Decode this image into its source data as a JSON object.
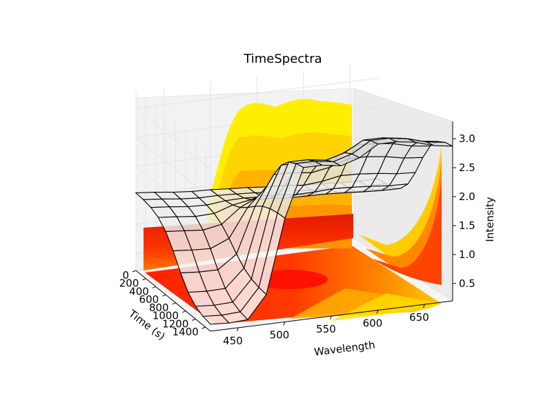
{
  "chart_data": {
    "type": "surface3d",
    "title": "TimeSpectra",
    "xlabel": "Wavelength",
    "ylabel": "Time (s)",
    "zlabel": "Intensity",
    "x_ticks": [
      450,
      500,
      550,
      600,
      650
    ],
    "y_ticks": [
      0,
      200,
      400,
      600,
      800,
      1000,
      1200,
      1400
    ],
    "z_ticks": [
      0.5,
      1.0,
      1.5,
      2.0,
      2.5,
      3.0
    ],
    "x_tick_labels": [
      "450",
      "500",
      "550",
      "600",
      "650"
    ],
    "y_tick_labels": [
      "0",
      "200",
      "400",
      "600",
      "800",
      "1000",
      "1200",
      "1400"
    ],
    "z_tick_labels": [
      "0.5",
      "1.0",
      "1.5",
      "2.0",
      "2.5",
      "3.0"
    ],
    "xlim": [
      420,
      680
    ],
    "ylim": [
      0,
      1500
    ],
    "zlim": [
      0.2,
      3.3
    ],
    "grid": true,
    "wireframe_wavelengths": [
      420,
      440,
      460,
      480,
      500,
      520,
      540,
      560,
      580,
      600,
      620,
      640,
      660,
      680
    ],
    "wireframe_times": [
      0,
      150,
      300,
      450,
      600,
      750,
      900,
      1050,
      1200,
      1350,
      1500
    ],
    "intensity_at_time0": [
      1.55,
      1.52,
      1.48,
      1.45,
      1.43,
      1.4,
      1.38,
      1.35,
      1.33,
      1.3,
      1.28,
      1.26,
      1.25,
      1.25
    ],
    "intensity_at_time1500": [
      0.3,
      0.28,
      0.3,
      0.7,
      2.0,
      2.85,
      2.85,
      2.8,
      2.9,
      3.1,
      3.1,
      3.05,
      2.95,
      2.9
    ],
    "contour_colors": [
      "#ff1100",
      "#ff4400",
      "#ff7700",
      "#ffaa00",
      "#ffcc00",
      "#ffee00"
    ],
    "colors": {
      "surface_face": "#ffffff",
      "wire": "#000000",
      "pane_left": "#f2f2f2",
      "pane_back": "#f2f2f2",
      "grid": "#e6e6e6"
    }
  }
}
